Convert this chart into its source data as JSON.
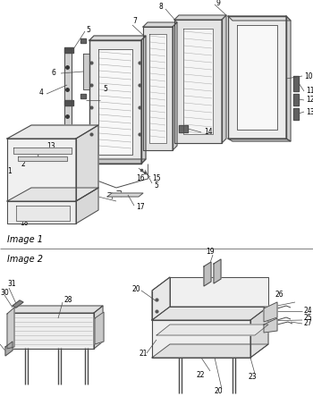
{
  "bg_color": "#ffffff",
  "line_color": "#4a4a4a",
  "label_color": "#000000",
  "title1": "Image 1",
  "title2": "Image 2",
  "fig_width": 3.5,
  "fig_height": 4.53,
  "dpi": 100,
  "label_fontsize": 5.5,
  "title_fontsize": 7.0
}
